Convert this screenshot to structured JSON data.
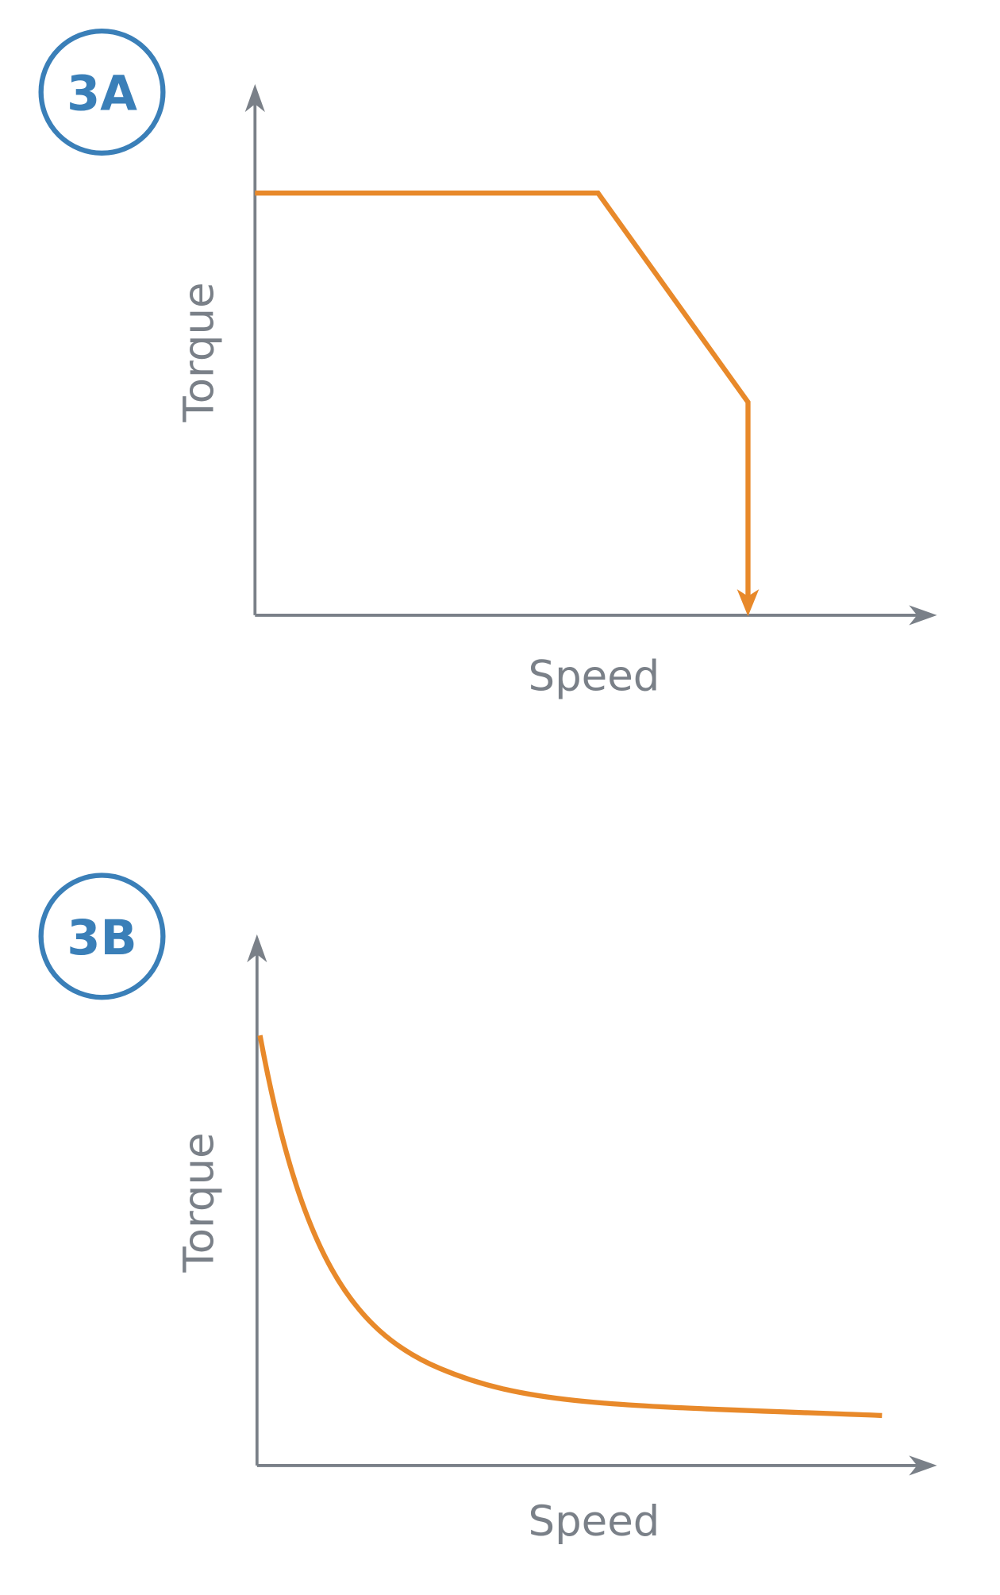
{
  "panels": [
    {
      "label": "3A",
      "y_label": "Torque",
      "x_label": "Speed"
    },
    {
      "label": "3B",
      "y_label": "Torque",
      "x_label": "Speed"
    }
  ]
}
